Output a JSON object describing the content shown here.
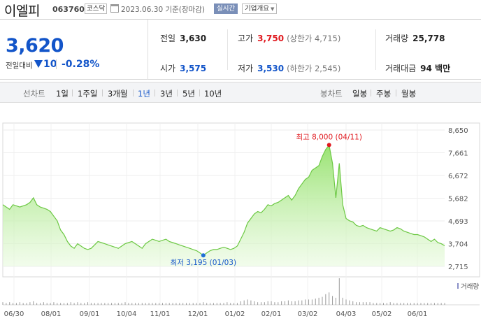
{
  "header": {
    "name": "이엘피",
    "code": "063760",
    "market": "코스닥",
    "date": "2023.06.30 기준(장마감)",
    "live_label": "실시간",
    "info_label": "기업개요"
  },
  "summary": {
    "price": "3,620",
    "change_label": "전일대비",
    "change_amount": "10",
    "change_pct": "-0.28%",
    "prev_label": "전일",
    "prev_value": "3,630",
    "high_label": "고가",
    "high_value": "3,750",
    "upper_limit": "(상한가 4,715)",
    "volume_label": "거래량",
    "volume_value": "25,778",
    "open_label": "시가",
    "open_value": "3,575",
    "low_label": "저가",
    "low_value": "3,530",
    "lower_limit": "(하한가 2,545)",
    "amount_label": "거래대금",
    "amount_value": "94 백만"
  },
  "tabs": {
    "line_chart_label": "선차트",
    "periods": [
      "1일",
      "1주일",
      "3개월",
      "1년",
      "3년",
      "5년",
      "10년"
    ],
    "active_period": "1년",
    "candle_chart_label": "봉차트",
    "candles": [
      "일봉",
      "주봉",
      "월봉"
    ]
  },
  "colors": {
    "accent_blue": "#1355c9",
    "up_red": "#e0191f",
    "area_green": "#7ed957"
  },
  "chart_data": {
    "type": "area",
    "yticks": [
      "8,650",
      "7,661",
      "6,672",
      "5,682",
      "4,693",
      "3,704",
      "2,715"
    ],
    "ylim": [
      2715,
      8650
    ],
    "xticks": [
      "06/30",
      "08/01",
      "09/01",
      "10/04",
      "11/01",
      "12/01",
      "01/02",
      "02/01",
      "03/02",
      "04/03",
      "05/02",
      "06/01"
    ],
    "max_label": "최고 8,000 (04/11)",
    "min_label": "최저 3,195 (01/03)",
    "volume_label": "거래량",
    "values": [
      5400,
      5300,
      5200,
      5400,
      5350,
      5300,
      5350,
      5400,
      5500,
      5700,
      5400,
      5300,
      5250,
      5200,
      5100,
      4900,
      4700,
      4300,
      4100,
      3800,
      3600,
      3500,
      3700,
      3600,
      3500,
      3450,
      3500,
      3650,
      3800,
      3750,
      3700,
      3650,
      3600,
      3550,
      3500,
      3600,
      3700,
      3750,
      3800,
      3700,
      3600,
      3500,
      3700,
      3800,
      3900,
      3850,
      3800,
      3850,
      3900,
      3800,
      3750,
      3700,
      3650,
      3600,
      3550,
      3500,
      3450,
      3400,
      3300,
      3195,
      3300,
      3400,
      3450,
      3450,
      3500,
      3550,
      3500,
      3450,
      3500,
      3600,
      3900,
      4200,
      4600,
      4800,
      5000,
      5100,
      5050,
      5200,
      5400,
      5350,
      5450,
      5500,
      5600,
      5700,
      5800,
      5600,
      5800,
      6100,
      6300,
      6500,
      6600,
      6900,
      7000,
      7100,
      7500,
      7800,
      8000,
      7200,
      5700,
      7200,
      5400,
      4800,
      4700,
      4650,
      4500,
      4450,
      4500,
      4400,
      4350,
      4300,
      4250,
      4400,
      4350,
      4300,
      4250,
      4300,
      4400,
      4350,
      4250,
      4200,
      4150,
      4100,
      4100,
      4050,
      4000,
      3900,
      3800,
      3900,
      3750,
      3700,
      3620
    ],
    "volumes": [
      3,
      2,
      3,
      2,
      2,
      3,
      2,
      2,
      3,
      4,
      2,
      2,
      3,
      2,
      2,
      3,
      2,
      2,
      2,
      2,
      3,
      2,
      3,
      2,
      2,
      3,
      2,
      2,
      2,
      2,
      2,
      2,
      2,
      2,
      2,
      2,
      3,
      2,
      2,
      2,
      2,
      2,
      2,
      2,
      2,
      2,
      2,
      2,
      2,
      2,
      2,
      2,
      2,
      2,
      2,
      2,
      2,
      2,
      2,
      3,
      2,
      2,
      2,
      2,
      2,
      2,
      3,
      2,
      2,
      2,
      4,
      5,
      6,
      5,
      4,
      3,
      3,
      3,
      4,
      4,
      3,
      3,
      4,
      4,
      5,
      4,
      4,
      5,
      5,
      6,
      6,
      6,
      7,
      8,
      9,
      12,
      14,
      10,
      8,
      30,
      8,
      6,
      5,
      4,
      3,
      3,
      3,
      3,
      3,
      2,
      2,
      2,
      2,
      2,
      3,
      2,
      2,
      2,
      2,
      2,
      2,
      2,
      2,
      2,
      2,
      2,
      2,
      2,
      2,
      2,
      2
    ]
  }
}
